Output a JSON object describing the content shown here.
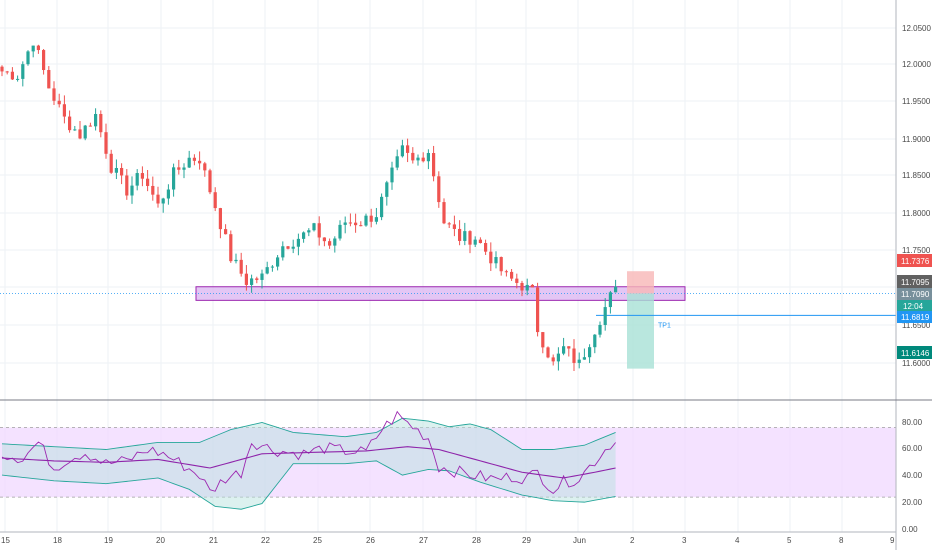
{
  "colors": {
    "up": "#26a69a",
    "down": "#ef5350",
    "zone_fill": "#d9b3f0",
    "zone_border": "#9c27b0",
    "rsi_line": "#9c27b0",
    "bb_line": "#26a69a",
    "rsi_band_fill": "#efd6ff",
    "grid": "#eef2f6",
    "axis_text": "#4a4a4a",
    "stop_fill": "#f7b6b6",
    "target_fill": "#a7e1d6",
    "tp_line": "#2196f3"
  },
  "price_axis": {
    "labels": [
      "12.0500",
      "12.0000",
      "11.9500",
      "11.9000",
      "11.8500",
      "11.8000",
      "11.7500",
      "11.6500",
      "11.6000"
    ],
    "tags": [
      {
        "text": "11.7376",
        "color": "#ef5350"
      },
      {
        "text": "11.7095",
        "color": "#616161"
      },
      {
        "text": "11.7090",
        "color": "#78909c"
      },
      {
        "text": "12:04",
        "color": "#26a69a"
      },
      {
        "text": "11.6819",
        "color": "#2196f3"
      },
      {
        "text": "11.6146",
        "color": "#00897b"
      }
    ]
  },
  "rsi_axis": {
    "labels": [
      "80.00",
      "60.00",
      "40.00",
      "20.00",
      "0.00"
    ]
  },
  "time_axis": {
    "labels": [
      "15",
      "18",
      "19",
      "20",
      "21",
      "22",
      "25",
      "26",
      "27",
      "28",
      "29",
      "Jun",
      "2",
      "3",
      "4",
      "5",
      "8",
      "9"
    ]
  },
  "tp_label": "TP1",
  "chart_data": [
    {
      "type": "candlestick",
      "title": "",
      "y_range": [
        11.575,
        12.08
      ],
      "x_labels": [
        "15",
        "18",
        "19",
        "20",
        "21",
        "22",
        "25",
        "26",
        "27",
        "28",
        "29",
        "Jun",
        "2",
        "3",
        "4",
        "5",
        "8",
        "9"
      ],
      "close_path": [
        [
          0,
          11.99
        ],
        [
          3,
          11.985
        ],
        [
          6,
          12.03
        ],
        [
          9,
          11.97
        ],
        [
          12,
          11.93
        ],
        [
          15,
          11.91
        ],
        [
          18,
          11.935
        ],
        [
          21,
          11.87
        ],
        [
          24,
          11.84
        ],
        [
          27,
          11.86
        ],
        [
          30,
          11.82
        ],
        [
          33,
          11.86
        ],
        [
          36,
          11.88
        ],
        [
          38,
          11.88
        ],
        [
          41,
          11.82
        ],
        [
          44,
          11.755
        ],
        [
          47,
          11.725
        ],
        [
          50,
          11.73
        ],
        [
          54,
          11.77
        ],
        [
          57,
          11.78
        ],
        [
          60,
          11.79
        ],
        [
          63,
          11.77
        ],
        [
          66,
          11.8
        ],
        [
          69,
          11.8
        ],
        [
          72,
          11.81
        ],
        [
          75,
          11.86
        ],
        [
          77,
          11.89
        ],
        [
          79,
          11.875
        ],
        [
          82,
          11.89
        ],
        [
          85,
          11.8
        ],
        [
          88,
          11.78
        ],
        [
          91,
          11.78
        ],
        [
          94,
          11.755
        ],
        [
          97,
          11.73
        ],
        [
          100,
          11.72
        ],
        [
          102,
          11.71
        ],
        [
          103,
          11.665
        ],
        [
          106,
          11.62
        ],
        [
          108,
          11.64
        ],
        [
          111,
          11.62
        ],
        [
          114,
          11.665
        ],
        [
          117,
          11.705
        ],
        [
          118,
          11.712
        ]
      ],
      "support_zone": [
        11.7008,
        11.718
      ],
      "position": {
        "entry": 11.7095,
        "stop": 11.7376,
        "target": 11.6146,
        "tp1": 11.6819
      }
    },
    {
      "type": "line",
      "title": "",
      "y_range": [
        0,
        90
      ],
      "band": [
        24.5,
        73.5
      ],
      "rsi_path": [
        [
          0,
          55
        ],
        [
          4,
          52
        ],
        [
          7,
          63
        ],
        [
          10,
          45
        ],
        [
          13,
          52
        ],
        [
          16,
          56
        ],
        [
          20,
          48
        ],
        [
          24,
          50
        ],
        [
          28,
          58
        ],
        [
          31,
          55
        ],
        [
          34,
          49
        ],
        [
          38,
          40
        ],
        [
          40,
          28
        ],
        [
          43,
          38
        ],
        [
          46,
          42
        ],
        [
          48,
          64
        ],
        [
          52,
          58
        ],
        [
          55,
          56
        ],
        [
          58,
          55
        ],
        [
          62,
          59
        ],
        [
          66,
          57
        ],
        [
          70,
          56
        ],
        [
          73,
          72
        ],
        [
          76,
          82
        ],
        [
          79,
          74
        ],
        [
          82,
          66
        ],
        [
          84,
          46
        ],
        [
          88,
          42
        ],
        [
          92,
          39
        ],
        [
          95,
          37
        ],
        [
          98,
          39
        ],
        [
          101,
          38
        ],
        [
          103,
          42
        ],
        [
          106,
          30
        ],
        [
          108,
          35
        ],
        [
          111,
          38
        ],
        [
          114,
          50
        ],
        [
          117,
          62
        ],
        [
          118,
          63
        ]
      ],
      "rsi_ma_path": [
        [
          0,
          52
        ],
        [
          10,
          50
        ],
        [
          20,
          49
        ],
        [
          30,
          51
        ],
        [
          40,
          45
        ],
        [
          50,
          55
        ],
        [
          60,
          56
        ],
        [
          70,
          57
        ],
        [
          78,
          60
        ],
        [
          84,
          58
        ],
        [
          92,
          50
        ],
        [
          100,
          42
        ],
        [
          108,
          38
        ],
        [
          114,
          42
        ],
        [
          118,
          45
        ]
      ],
      "bb_upper_path": [
        [
          0,
          62
        ],
        [
          10,
          60
        ],
        [
          20,
          58
        ],
        [
          30,
          63
        ],
        [
          38,
          63
        ],
        [
          44,
          72
        ],
        [
          50,
          77
        ],
        [
          56,
          70
        ],
        [
          66,
          67
        ],
        [
          72,
          70
        ],
        [
          77,
          80
        ],
        [
          82,
          78
        ],
        [
          86,
          74
        ],
        [
          90,
          76
        ],
        [
          94,
          72
        ],
        [
          100,
          58
        ],
        [
          106,
          58
        ],
        [
          112,
          61
        ],
        [
          118,
          70
        ]
      ],
      "bb_lower_path": [
        [
          0,
          40
        ],
        [
          10,
          36
        ],
        [
          20,
          34
        ],
        [
          30,
          38
        ],
        [
          36,
          30
        ],
        [
          41,
          18
        ],
        [
          46,
          16
        ],
        [
          50,
          20
        ],
        [
          56,
          48
        ],
        [
          66,
          48
        ],
        [
          72,
          50
        ],
        [
          77,
          40
        ],
        [
          82,
          44
        ],
        [
          86,
          43
        ],
        [
          92,
          35
        ],
        [
          100,
          26
        ],
        [
          106,
          22
        ],
        [
          112,
          21
        ],
        [
          118,
          25
        ]
      ]
    }
  ]
}
